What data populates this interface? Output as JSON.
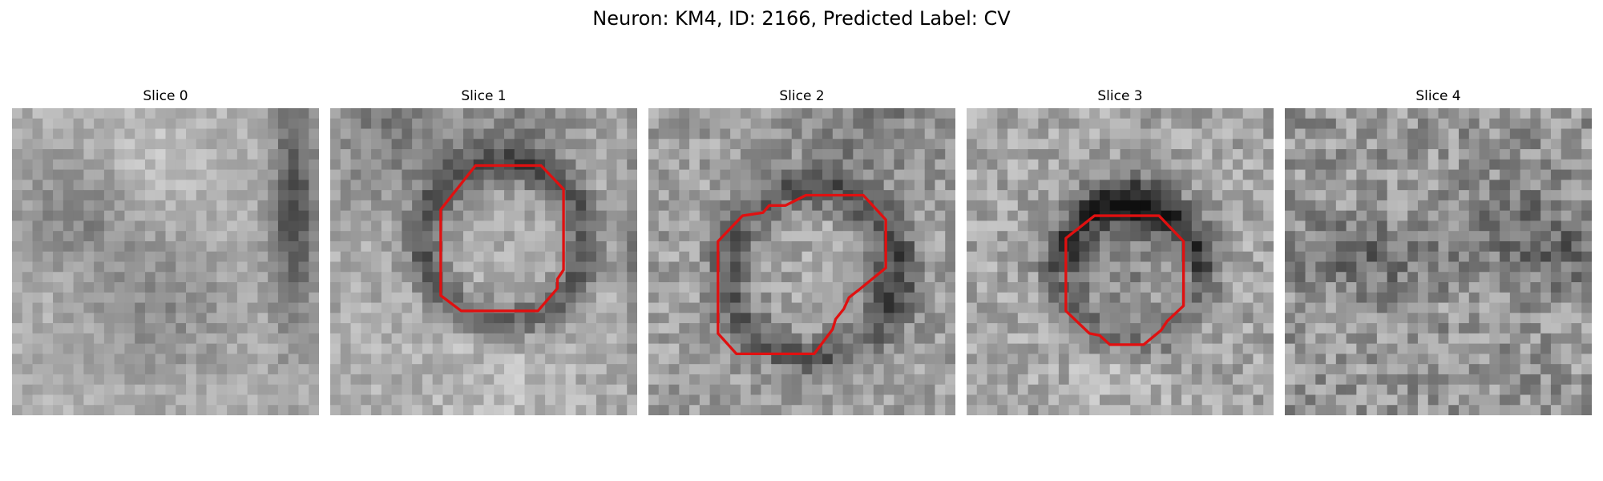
{
  "figure": {
    "title": "Neuron: KM4, ID: 2166, Predicted Label: CV"
  },
  "style": {
    "contour_color": "#e01010"
  },
  "panels": [
    {
      "title": "Slice 0",
      "has_contour": false
    },
    {
      "title": "Slice 1",
      "has_contour": true
    },
    {
      "title": "Slice 2",
      "has_contour": true
    },
    {
      "title": "Slice 3",
      "has_contour": true
    },
    {
      "title": "Slice 4",
      "has_contour": false
    }
  ]
}
